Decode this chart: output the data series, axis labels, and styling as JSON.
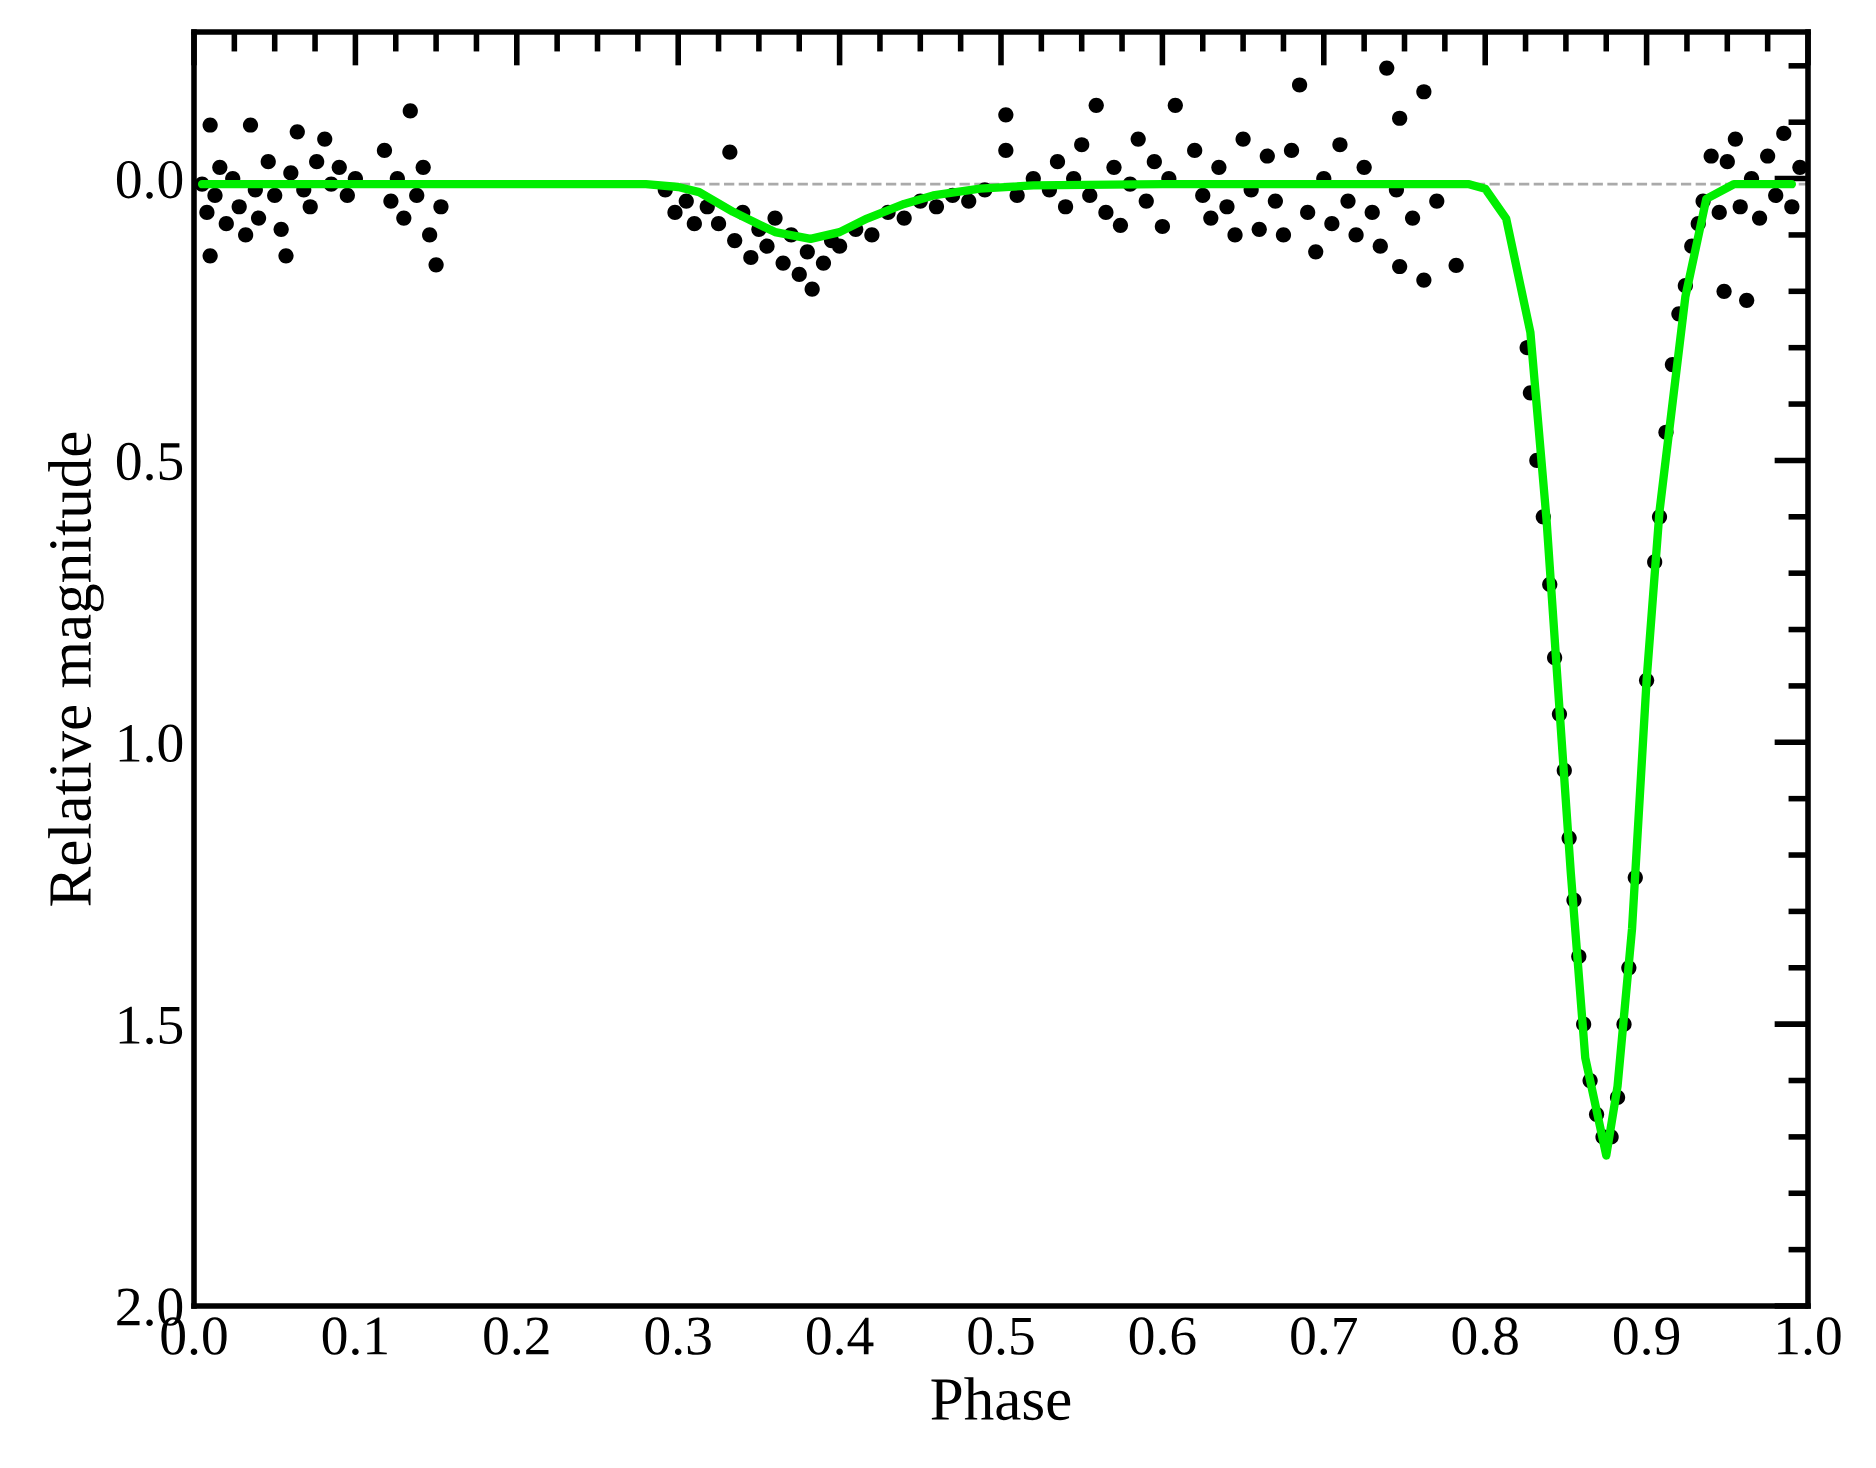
{
  "chart_data": {
    "type": "scatter",
    "xlabel": "Phase",
    "ylabel": "Relative magnitude",
    "xlim": [
      0.0,
      1.0
    ],
    "ylim": [
      2.0,
      -0.26
    ],
    "xticks": [
      {
        "value": 0,
        "label": "0.0"
      },
      0.1,
      0.2,
      0.3,
      0.4,
      0.5,
      0.6,
      0.7,
      0.8,
      0.9,
      {
        "value": 1,
        "label": "1.0"
      }
    ],
    "yticks": [
      {
        "value": 0,
        "label": "0.0"
      },
      0.5,
      {
        "value": 1,
        "label": "1.0"
      },
      1.5,
      {
        "value": 2,
        "label": "2.0"
      }
    ],
    "ref_lines": [
      {
        "axis": "y",
        "value": 0.01,
        "color": "#aaaaaa",
        "line_style": "dashed"
      }
    ],
    "series": [
      {
        "color": "#000000",
        "marker": "circle",
        "x": [
          0.005,
          0.008,
          0.01,
          0.01,
          0.013,
          0.016,
          0.02,
          0.024,
          0.028,
          0.032,
          0.035,
          0.038,
          0.04,
          0.046,
          0.05,
          0.054,
          0.057,
          0.06,
          0.064,
          0.068,
          0.072,
          0.076,
          0.081,
          0.085,
          0.09,
          0.095,
          0.1,
          0.118,
          0.122,
          0.126,
          0.13,
          0.134,
          0.138,
          0.142,
          0.146,
          0.15,
          0.153,
          0.292,
          0.298,
          0.305,
          0.31,
          0.318,
          0.325,
          0.332,
          0.335,
          0.34,
          0.345,
          0.35,
          0.355,
          0.36,
          0.365,
          0.37,
          0.375,
          0.38,
          0.383,
          0.39,
          0.395,
          0.4,
          0.41,
          0.42,
          0.43,
          0.44,
          0.45,
          0.46,
          0.47,
          0.48,
          0.49,
          0.503,
          0.503,
          0.51,
          0.52,
          0.53,
          0.535,
          0.54,
          0.545,
          0.55,
          0.555,
          0.559,
          0.565,
          0.57,
          0.574,
          0.58,
          0.585,
          0.59,
          0.595,
          0.6,
          0.604,
          0.608,
          0.62,
          0.625,
          0.63,
          0.635,
          0.64,
          0.645,
          0.65,
          0.655,
          0.66,
          0.665,
          0.67,
          0.675,
          0.68,
          0.685,
          0.69,
          0.695,
          0.7,
          0.705,
          0.71,
          0.715,
          0.72,
          0.725,
          0.73,
          0.735,
          0.739,
          0.745,
          0.747,
          0.747,
          0.755,
          0.762,
          0.762,
          0.77,
          0.782,
          0.826,
          0.828,
          0.832,
          0.836,
          0.84,
          0.843,
          0.846,
          0.849,
          0.852,
          0.855,
          0.858,
          0.861,
          0.865,
          0.869,
          0.873,
          0.878,
          0.882,
          0.886,
          0.889,
          0.893,
          0.9,
          0.905,
          0.908,
          0.912,
          0.916,
          0.92,
          0.924,
          0.928,
          0.932,
          0.935,
          0.94,
          0.945,
          0.948,
          0.95,
          0.955,
          0.958,
          0.962,
          0.965,
          0.97,
          0.975,
          0.98,
          0.985,
          0.99,
          0.995
        ],
        "values": [
          0.01,
          0.06,
          -0.095,
          0.137,
          0.03,
          -0.02,
          0.08,
          0.0,
          0.05,
          0.1,
          -0.095,
          0.02,
          0.07,
          -0.03,
          0.03,
          0.09,
          0.137,
          -0.01,
          -0.083,
          0.02,
          0.05,
          -0.03,
          -0.07,
          0.01,
          -0.02,
          0.03,
          0.0,
          -0.05,
          0.04,
          0.0,
          0.07,
          -0.12,
          0.03,
          -0.02,
          0.1,
          0.153,
          0.05,
          0.02,
          0.06,
          0.04,
          0.08,
          0.05,
          0.08,
          -0.047,
          0.11,
          0.06,
          0.14,
          0.09,
          0.12,
          0.07,
          0.15,
          0.1,
          0.17,
          0.13,
          0.196,
          0.15,
          0.11,
          0.12,
          0.09,
          0.1,
          0.06,
          0.07,
          0.04,
          0.05,
          0.03,
          0.04,
          0.02,
          -0.113,
          -0.05,
          0.03,
          0.0,
          0.02,
          -0.03,
          0.05,
          0.0,
          -0.06,
          0.03,
          -0.13,
          0.06,
          -0.02,
          0.083,
          0.01,
          -0.07,
          0.04,
          -0.03,
          0.085,
          0.0,
          -0.13,
          -0.05,
          0.03,
          0.07,
          -0.02,
          0.05,
          0.1,
          -0.07,
          0.02,
          0.09,
          -0.04,
          0.04,
          0.1,
          -0.05,
          -0.166,
          0.06,
          0.13,
          0.0,
          0.08,
          -0.06,
          0.04,
          0.1,
          -0.02,
          0.06,
          0.12,
          -0.196,
          0.02,
          -0.107,
          0.156,
          0.07,
          -0.154,
          0.18,
          0.04,
          0.154,
          0.3,
          0.38,
          0.5,
          0.6,
          0.72,
          0.85,
          0.95,
          1.05,
          1.17,
          1.28,
          1.38,
          1.5,
          1.6,
          1.66,
          1.7,
          1.7,
          1.63,
          1.5,
          1.4,
          1.24,
          0.89,
          0.68,
          0.6,
          0.45,
          0.33,
          0.24,
          0.19,
          0.12,
          0.08,
          0.04,
          -0.04,
          0.06,
          0.2,
          -0.03,
          -0.07,
          0.05,
          0.216,
          0.0,
          0.07,
          -0.04,
          0.03,
          -0.08,
          0.05,
          -0.02
        ]
      },
      {
        "type": "line",
        "color": "#00ee00",
        "line_style": "solid",
        "marker": "none",
        "x": [
          0.005,
          0.1,
          0.2,
          0.28,
          0.3,
          0.313,
          0.334,
          0.36,
          0.382,
          0.4,
          0.417,
          0.44,
          0.458,
          0.487,
          0.52,
          0.6,
          0.7,
          0.79,
          0.8,
          0.813,
          0.828,
          0.838,
          0.846,
          0.853,
          0.862,
          0.875,
          0.882,
          0.891,
          0.9,
          0.908,
          0.924,
          0.937,
          0.954,
          0.97,
          0.99
        ],
        "values": [
          0.01,
          0.01,
          0.01,
          0.01,
          0.015,
          0.024,
          0.059,
          0.095,
          0.107,
          0.095,
          0.071,
          0.045,
          0.03,
          0.018,
          0.012,
          0.01,
          0.01,
          0.01,
          0.018,
          0.071,
          0.273,
          0.605,
          0.94,
          1.23,
          1.56,
          1.733,
          1.61,
          1.33,
          0.89,
          0.59,
          0.21,
          0.036,
          0.01,
          0.01,
          0.01
        ]
      }
    ]
  }
}
